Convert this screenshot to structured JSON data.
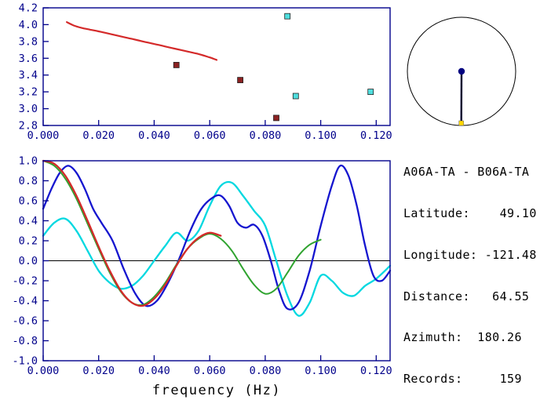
{
  "window": {
    "background": "#ffffff"
  },
  "colors": {
    "axis": "#00008b",
    "tick_label": "#00008b",
    "axis_title": "#000000",
    "zero_line": "#000000",
    "info_text": "#000000"
  },
  "chart_data": [
    {
      "id": "dispersion",
      "type": "line+scatter",
      "title": "",
      "xlabel": "",
      "ylabel": "",
      "xlim": [
        0,
        0.125
      ],
      "ylim": [
        2.8,
        4.2
      ],
      "grid": false,
      "legend": "none",
      "xticks": [
        0,
        0.02,
        0.04,
        0.06,
        0.08,
        0.1,
        0.12
      ],
      "xtick_labels": [
        "0.000",
        "0.020",
        "0.040",
        "0.060",
        "0.080",
        "0.100",
        "0.120"
      ],
      "yticks": [
        2.8,
        3.0,
        3.2,
        3.4,
        3.6,
        3.8,
        4.0,
        4.2
      ],
      "ytick_labels": [
        "2.8",
        "3.0",
        "3.2",
        "3.4",
        "3.6",
        "3.8",
        "4.0",
        "4.2"
      ],
      "series": [
        {
          "name": "group-velocity-curve",
          "type": "line",
          "color": "#d42a2a",
          "width": 2.2,
          "x": [
            0.0085,
            0.011,
            0.014,
            0.017,
            0.02,
            0.024,
            0.028,
            0.032,
            0.036,
            0.04,
            0.044,
            0.048,
            0.052,
            0.056,
            0.06,
            0.0625
          ],
          "y": [
            4.03,
            3.99,
            3.96,
            3.94,
            3.92,
            3.89,
            3.86,
            3.83,
            3.8,
            3.77,
            3.74,
            3.71,
            3.68,
            3.65,
            3.61,
            3.58
          ]
        },
        {
          "name": "dark-red-picks",
          "type": "scatter",
          "marker": "square",
          "color": "#8b2222",
          "x": [
            0.048,
            0.071,
            0.084
          ],
          "y": [
            3.52,
            3.34,
            2.89
          ]
        },
        {
          "name": "cyan-picks",
          "type": "scatter",
          "marker": "square",
          "color": "#4fdede",
          "x": [
            0.088,
            0.091,
            0.118
          ],
          "y": [
            4.1,
            3.15,
            3.2
          ]
        }
      ]
    },
    {
      "id": "correlation-stack",
      "type": "line",
      "title": "",
      "xlabel": "frequency (Hz)",
      "ylabel": "",
      "xlim": [
        0,
        0.125
      ],
      "ylim": [
        -1,
        1
      ],
      "grid": false,
      "legend": "none",
      "zero_line": true,
      "xticks": [
        0,
        0.02,
        0.04,
        0.06,
        0.08,
        0.1,
        0.12
      ],
      "xtick_labels": [
        "0.000",
        "0.020",
        "0.040",
        "0.060",
        "0.080",
        "0.100",
        "0.120"
      ],
      "yticks": [
        1.0,
        0.8,
        0.6,
        0.4,
        0.2,
        0.0,
        -0.2,
        -0.4,
        -0.6,
        -0.8,
        -1.0
      ],
      "ytick_labels": [
        "1.0",
        "0.8",
        "0.6",
        "0.4",
        "0.2",
        "0.0",
        "-0.2",
        "-0.4",
        "-0.6",
        "-0.8",
        "-1.0"
      ],
      "series": [
        {
          "name": "stack-cyan",
          "type": "line",
          "color": "#00d8e0",
          "width": 2.3,
          "x": [
            0.0,
            0.004,
            0.008,
            0.012,
            0.016,
            0.02,
            0.024,
            0.028,
            0.032,
            0.036,
            0.04,
            0.044,
            0.048,
            0.052,
            0.056,
            0.06,
            0.064,
            0.068,
            0.072,
            0.076,
            0.08,
            0.084,
            0.088,
            0.092,
            0.096,
            0.1,
            0.104,
            0.108,
            0.112,
            0.116,
            0.12,
            0.125
          ],
          "y": [
            0.25,
            0.38,
            0.42,
            0.3,
            0.1,
            -0.1,
            -0.22,
            -0.28,
            -0.25,
            -0.15,
            0.0,
            0.15,
            0.28,
            0.2,
            0.3,
            0.55,
            0.75,
            0.78,
            0.65,
            0.5,
            0.35,
            0.0,
            -0.35,
            -0.55,
            -0.42,
            -0.15,
            -0.2,
            -0.32,
            -0.35,
            -0.25,
            -0.18,
            -0.05
          ]
        },
        {
          "name": "stack-blue",
          "type": "line",
          "color": "#1515cf",
          "width": 2.3,
          "x": [
            0.0,
            0.003,
            0.006,
            0.009,
            0.012,
            0.015,
            0.018,
            0.021,
            0.025,
            0.029,
            0.033,
            0.037,
            0.041,
            0.045,
            0.049,
            0.053,
            0.057,
            0.061,
            0.064,
            0.067,
            0.07,
            0.073,
            0.076,
            0.079,
            0.082,
            0.085,
            0.088,
            0.092,
            0.096,
            0.1,
            0.104,
            0.107,
            0.11,
            0.113,
            0.116,
            0.119,
            0.122,
            0.125
          ],
          "y": [
            0.52,
            0.72,
            0.88,
            0.95,
            0.88,
            0.72,
            0.52,
            0.38,
            0.2,
            -0.08,
            -0.32,
            -0.45,
            -0.4,
            -0.22,
            0.02,
            0.3,
            0.52,
            0.63,
            0.65,
            0.55,
            0.38,
            0.33,
            0.36,
            0.25,
            0.0,
            -0.3,
            -0.48,
            -0.42,
            -0.1,
            0.35,
            0.75,
            0.95,
            0.85,
            0.55,
            0.15,
            -0.15,
            -0.2,
            -0.1
          ]
        },
        {
          "name": "stack-green",
          "type": "line",
          "color": "#2fa32f",
          "width": 2.0,
          "x": [
            0.0,
            0.004,
            0.008,
            0.012,
            0.016,
            0.02,
            0.024,
            0.028,
            0.032,
            0.036,
            0.04,
            0.044,
            0.048,
            0.052,
            0.056,
            0.06,
            0.064,
            0.068,
            0.072,
            0.076,
            0.08,
            0.084,
            0.088,
            0.092,
            0.096,
            0.1
          ],
          "y": [
            1.0,
            0.95,
            0.82,
            0.62,
            0.37,
            0.12,
            -0.12,
            -0.31,
            -0.42,
            -0.44,
            -0.36,
            -0.22,
            -0.04,
            0.12,
            0.22,
            0.27,
            0.22,
            0.1,
            -0.08,
            -0.24,
            -0.33,
            -0.28,
            -0.12,
            0.05,
            0.16,
            0.21
          ]
        },
        {
          "name": "stack-red",
          "type": "line",
          "color": "#d42a2a",
          "width": 2.3,
          "x": [
            0.0,
            0.004,
            0.008,
            0.012,
            0.016,
            0.02,
            0.024,
            0.028,
            0.032,
            0.036,
            0.04,
            0.044,
            0.048,
            0.052,
            0.056,
            0.06,
            0.064
          ],
          "y": [
            1.0,
            0.97,
            0.85,
            0.65,
            0.4,
            0.14,
            -0.1,
            -0.3,
            -0.42,
            -0.45,
            -0.38,
            -0.24,
            -0.05,
            0.12,
            0.23,
            0.28,
            0.25
          ]
        }
      ]
    }
  ],
  "azimuth_dial": {
    "azimuth_deg": 180.26,
    "circle_color": "#000000",
    "needle_color": "#000030",
    "center_dot_color": "#000080",
    "tip_marker_color": "#ffd700"
  },
  "info_panel": {
    "station_pair": "A06A-TA - B06A-TA",
    "lines": [
      "Latitude:    49.10",
      "Longitude: -121.48",
      "Distance:   64.55",
      "Azimuth:  180.26",
      "Records:     159"
    ]
  }
}
